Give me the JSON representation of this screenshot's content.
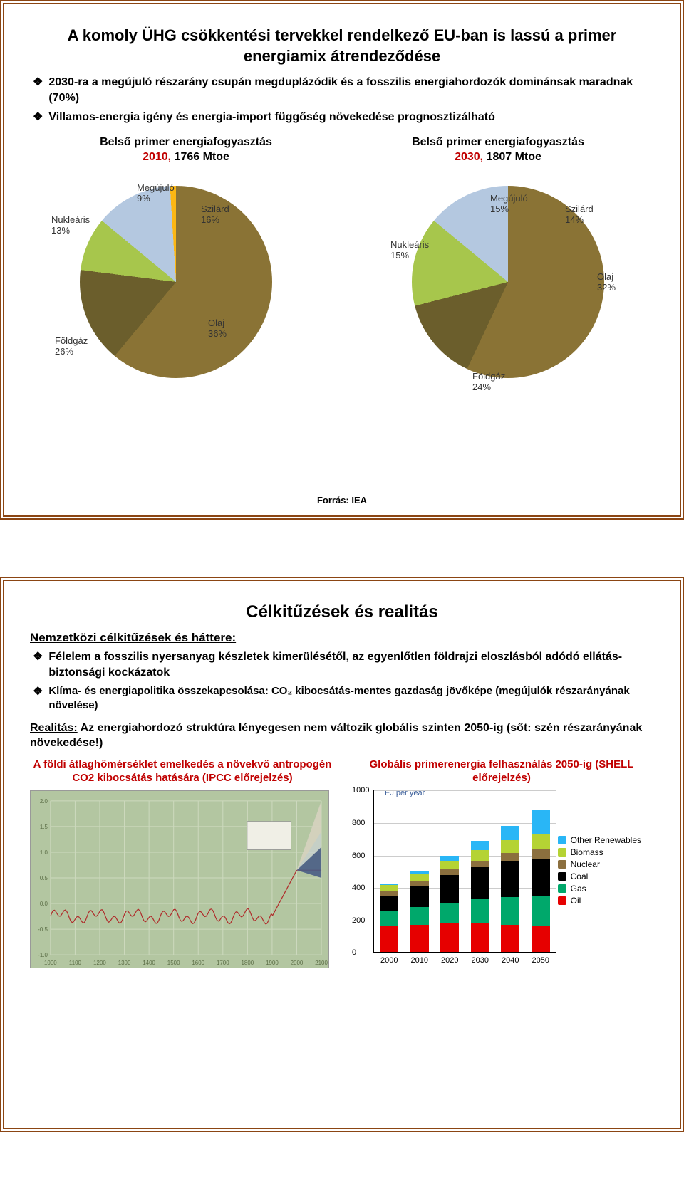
{
  "slide1": {
    "title": "A komoly ÜHG csökkentési tervekkel rendelkező EU-ban is lassú a primer energiamix átrendeződése",
    "bullet1": "2030-ra a megújuló részarány csupán megduplázódik és a fosszilis energiahordozók dominánsak maradnak (70%)",
    "bullet2": "Villamos-energia igény és energia-import függőség növekedése prognosztizálható",
    "source": "Forrás: IEA",
    "pie2010": {
      "titleA": "Belső primer energiafogyasztás",
      "titleB": "2010, ",
      "titleC": "1766 Mtoe",
      "slices": [
        {
          "name": "Olaj",
          "value": 36,
          "color": "#8a7335",
          "label": "Olaj\n36%"
        },
        {
          "name": "Szilárd",
          "value": 16,
          "color": "#6b5e2c",
          "label": "Szilárd\n16%"
        },
        {
          "name": "Megújuló",
          "value": 9,
          "color": "#a7c64c",
          "label": "Megújuló\n9%"
        },
        {
          "name": "Nukleáris",
          "value": 13,
          "color": "#b4c8e0",
          "label": "Nukleáris\n13%"
        },
        {
          "name": "Földgáz",
          "value": 26,
          "color": "#fcb714",
          "label": "Földgáz\n26%"
        }
      ]
    },
    "pie2030": {
      "titleA": "Belső primer energiafogyasztás",
      "titleB": "2030, ",
      "titleC": "1807 Mtoe",
      "slices": [
        {
          "name": "Olaj",
          "value": 32,
          "color": "#8a7335",
          "label": "Olaj\n32%"
        },
        {
          "name": "Szilárd",
          "value": 14,
          "color": "#6b5e2c",
          "label": "Szilárd\n14%"
        },
        {
          "name": "Megújuló",
          "value": 15,
          "color": "#a7c64c",
          "label": "Megújuló\n15%"
        },
        {
          "name": "Nukleáris",
          "value": 15,
          "color": "#b4c8e0",
          "label": "Nukleáris\n15%"
        },
        {
          "name": "Földgáz",
          "value": 24,
          "color": "#fcb714",
          "label": "Földgáz\n24%"
        }
      ]
    }
  },
  "slide2": {
    "title": "Célkitűzések és realitás",
    "subhead": "Nemzetközi célkitűzések és háttere:",
    "b1": "Félelem a fosszilis nyersanyag készletek kimerülésétől, az egyenlőtlen földrajzi eloszlásból adódó ellátás-biztonsági kockázatok",
    "b2": "Klíma- és energiapolitika összekapcsolása: CO₂ kibocsátás-mentes gazdaság jövőképe (megújulók részarányának növelése)",
    "realitas": "Realitás: Az energiahordozó struktúra lényegesen nem változik globális szinten 2050-ig (sőt: szén részarányának növekedése!)",
    "realitas_lead": "Realitás:",
    "leftTitle": "A földi átlaghőmérséklet emelkedés a növekvő antropogén CO2 kibocsátás hatására (IPCC előrejelzés)",
    "rightTitle": "Globális primerenergia felhasználás 2050-ig (SHELL előrejelzés)",
    "ipcc": {
      "bg": "#b3c6a1",
      "line_color": "#b02a2a",
      "fan_low": "#243c6e",
      "fan_mid": "#d0d6e0",
      "fan_hi": "#d8d2b8",
      "xticks": [
        "1000",
        "1100",
        "1200",
        "1300",
        "1400",
        "1500",
        "1600",
        "1700",
        "1800",
        "1900",
        "2000",
        "2100"
      ],
      "yticks": [
        "-1.0",
        "-0.5",
        "0.0",
        "0.5",
        "1.0",
        "1.5",
        "2.0"
      ]
    },
    "bars": {
      "ytitle": "EJ per year",
      "ymax": 1000,
      "yticks": [
        0,
        200,
        400,
        600,
        800,
        1000
      ],
      "years": [
        "2000",
        "2010",
        "2020",
        "2030",
        "2040",
        "2050"
      ],
      "series": [
        {
          "name": "Oil",
          "color": "#e60000"
        },
        {
          "name": "Gas",
          "color": "#00a86b"
        },
        {
          "name": "Coal",
          "color": "#000000"
        },
        {
          "name": "Nuclear",
          "color": "#8b6f3e"
        },
        {
          "name": "Biomass",
          "color": "#b5d334"
        },
        {
          "name": "Other Renewables",
          "color": "#29b6f6"
        }
      ],
      "legend": [
        {
          "name": "Other Renewables",
          "color": "#29b6f6"
        },
        {
          "name": "Biomass",
          "color": "#b5d334"
        },
        {
          "name": "Nuclear",
          "color": "#8b6f3e"
        },
        {
          "name": "Coal",
          "color": "#000000"
        },
        {
          "name": "Gas",
          "color": "#00a86b"
        },
        {
          "name": "Oil",
          "color": "#e60000"
        }
      ],
      "data": [
        {
          "Oil": 160,
          "Gas": 90,
          "Coal": 100,
          "Nuclear": 30,
          "Biomass": 35,
          "Other Renewables": 10
        },
        {
          "Oil": 170,
          "Gas": 110,
          "Coal": 130,
          "Nuclear": 30,
          "Biomass": 40,
          "Other Renewables": 20
        },
        {
          "Oil": 175,
          "Gas": 130,
          "Coal": 170,
          "Nuclear": 35,
          "Biomass": 50,
          "Other Renewables": 35
        },
        {
          "Oil": 175,
          "Gas": 150,
          "Coal": 200,
          "Nuclear": 40,
          "Biomass": 65,
          "Other Renewables": 55
        },
        {
          "Oil": 170,
          "Gas": 170,
          "Coal": 220,
          "Nuclear": 50,
          "Biomass": 80,
          "Other Renewables": 90
        },
        {
          "Oil": 165,
          "Gas": 180,
          "Coal": 230,
          "Nuclear": 60,
          "Biomass": 95,
          "Other Renewables": 150
        }
      ]
    }
  }
}
